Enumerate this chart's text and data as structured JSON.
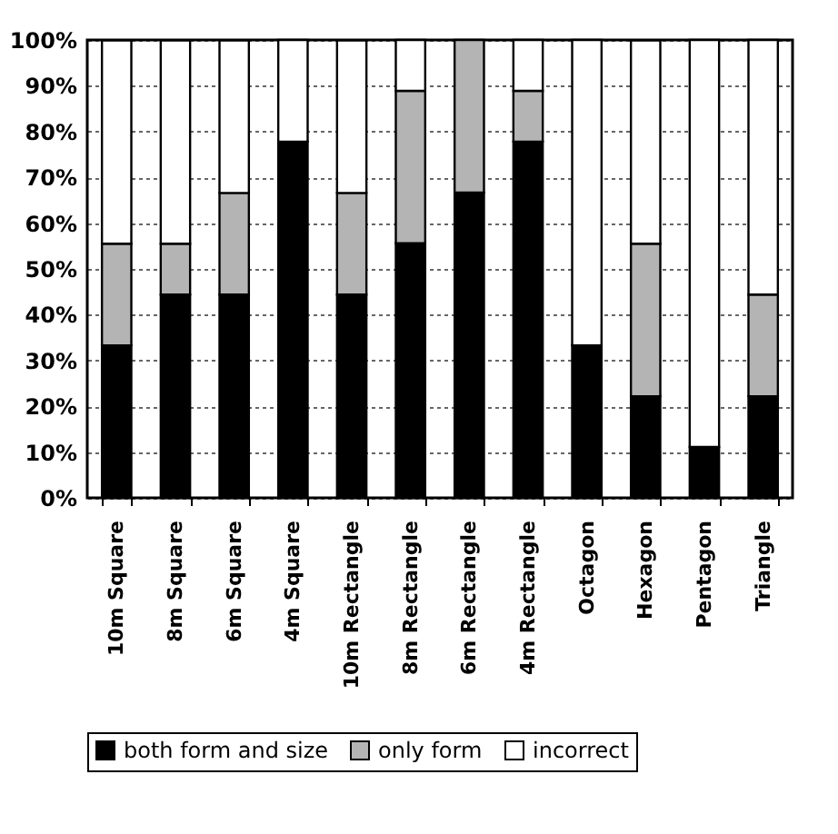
{
  "chart_data": {
    "type": "bar",
    "stacked": true,
    "categories": [
      "10m Square",
      "8m Square",
      "6m Square",
      "4m Square",
      "10m Rectangle",
      "8m Rectangle",
      "6m Rectangle",
      "4m Rectangle",
      "Octagon",
      "Hexagon",
      "Pentagon",
      "Triangle"
    ],
    "series": [
      {
        "name": "both form and size",
        "color": "#000000",
        "values": [
          33.3,
          44.4,
          44.4,
          77.8,
          44.4,
          55.6,
          66.7,
          77.8,
          33.3,
          22.2,
          11.1,
          22.2
        ]
      },
      {
        "name": "only form",
        "color": "#b4b4b4",
        "values": [
          22.2,
          11.1,
          22.2,
          0,
          22.2,
          33.3,
          33.3,
          11.1,
          0,
          33.3,
          0,
          22.2
        ]
      },
      {
        "name": "incorrect",
        "color": "#ffffff",
        "values": [
          44.4,
          44.4,
          33.3,
          22.2,
          33.3,
          11.1,
          0,
          11.1,
          66.7,
          44.4,
          88.9,
          55.6
        ]
      }
    ],
    "ylim": [
      0,
      100
    ],
    "yticks": [
      {
        "value": 0,
        "label": "0%"
      },
      {
        "value": 10,
        "label": "10%"
      },
      {
        "value": 20,
        "label": "20%"
      },
      {
        "value": 30,
        "label": "30%"
      },
      {
        "value": 40,
        "label": "40%"
      },
      {
        "value": 50,
        "label": "50%"
      },
      {
        "value": 60,
        "label": "60%"
      },
      {
        "value": 70,
        "label": "70%"
      },
      {
        "value": 80,
        "label": "80%"
      },
      {
        "value": 90,
        "label": "90%"
      },
      {
        "value": 100,
        "label": "100%"
      }
    ],
    "grid": "y",
    "legend": "bottom"
  }
}
